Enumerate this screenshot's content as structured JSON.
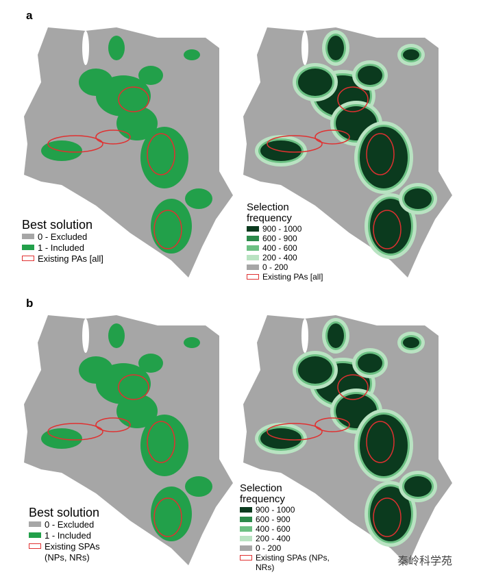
{
  "panels": [
    {
      "label": "a",
      "maps": [
        {
          "kind": "best",
          "legend": {
            "title": "Best solution",
            "items": [
              {
                "label": "0 - Excluded",
                "color": "#a6a6a6"
              },
              {
                "label": "1 - Included",
                "color": "#22a04a"
              },
              {
                "label": "Existing PAs [all]",
                "outline": "#e03030"
              }
            ]
          }
        },
        {
          "kind": "frequency",
          "legend": {
            "title": "Selection frequency",
            "items": [
              {
                "label": "900 - 1000",
                "color": "#0b3a1e"
              },
              {
                "label": "600 - 900",
                "color": "#2b8a4a"
              },
              {
                "label": "400 - 600",
                "color": "#6cc083"
              },
              {
                "label": "200 - 400",
                "color": "#b9e3c2"
              },
              {
                "label": "0 - 200",
                "color": "#a6a6a6"
              },
              {
                "label": "Existing PAs [all]",
                "outline": "#e03030"
              }
            ]
          }
        }
      ]
    },
    {
      "label": "b",
      "maps": [
        {
          "kind": "best",
          "legend": {
            "title": "Best solution",
            "items": [
              {
                "label": "0 - Excluded",
                "color": "#a6a6a6"
              },
              {
                "label": "1 - Included",
                "color": "#22a04a"
              },
              {
                "label": "Existing SPAs (NPs, NRs)",
                "outline": "#e03030"
              }
            ]
          }
        },
        {
          "kind": "frequency",
          "legend": {
            "title": "Selection frequency",
            "items": [
              {
                "label": "900 - 1000",
                "color": "#0b3a1e"
              },
              {
                "label": "600 - 900",
                "color": "#2b8a4a"
              },
              {
                "label": "400 - 600",
                "color": "#6cc083"
              },
              {
                "label": "200 - 400",
                "color": "#b9e3c2"
              },
              {
                "label": "0 - 200",
                "color": "#a6a6a6"
              },
              {
                "label": "Existing SPAs (NPs, NRs)",
                "outline": "#e03030"
              }
            ]
          }
        }
      ]
    }
  ],
  "watermark": "秦岭科学苑"
}
